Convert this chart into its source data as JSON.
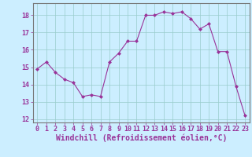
{
  "x": [
    0,
    1,
    2,
    3,
    4,
    5,
    6,
    7,
    8,
    9,
    10,
    11,
    12,
    13,
    14,
    15,
    16,
    17,
    18,
    19,
    20,
    21,
    22,
    23
  ],
  "y": [
    14.9,
    15.3,
    14.7,
    14.3,
    14.1,
    13.3,
    13.4,
    13.3,
    15.3,
    15.8,
    16.5,
    16.5,
    18.0,
    18.0,
    18.2,
    18.1,
    18.2,
    17.8,
    17.2,
    17.5,
    15.9,
    15.9,
    13.9,
    12.2
  ],
  "line_color": "#993399",
  "marker": "D",
  "marker_size": 2,
  "background_color": "#cceeff",
  "grid_color": "#99cccc",
  "xlabel": "Windchill (Refroidissement éolien,°C)",
  "xlabel_fontsize": 7,
  "ylim": [
    11.8,
    18.7
  ],
  "xlim": [
    -0.5,
    23.5
  ],
  "yticks": [
    12,
    13,
    14,
    15,
    16,
    17,
    18
  ],
  "xticks": [
    0,
    1,
    2,
    3,
    4,
    5,
    6,
    7,
    8,
    9,
    10,
    11,
    12,
    13,
    14,
    15,
    16,
    17,
    18,
    19,
    20,
    21,
    22,
    23
  ],
  "tick_fontsize": 6,
  "label_color": "#993399",
  "spine_color": "#777777"
}
